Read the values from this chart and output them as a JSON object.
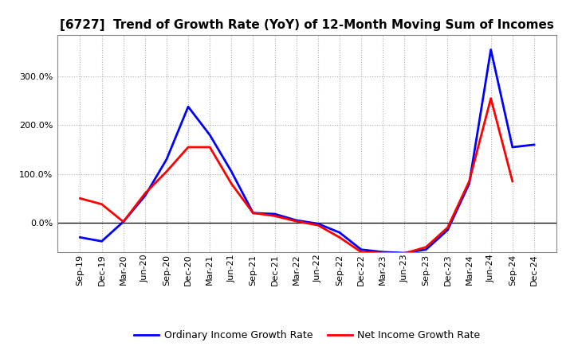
{
  "title": "[6727]  Trend of Growth Rate (YoY) of 12-Month Moving Sum of Incomes",
  "x_labels": [
    "Sep-19",
    "Dec-19",
    "Mar-20",
    "Jun-20",
    "Sep-20",
    "Dec-20",
    "Mar-21",
    "Jun-21",
    "Sep-21",
    "Dec-21",
    "Mar-22",
    "Jun-22",
    "Sep-22",
    "Dec-22",
    "Mar-23",
    "Jun-23",
    "Sep-23",
    "Dec-23",
    "Mar-24",
    "Jun-24",
    "Sep-24",
    "Dec-24"
  ],
  "ordinary_income": [
    -0.3,
    -0.38,
    0.02,
    0.55,
    1.3,
    2.38,
    1.8,
    1.05,
    0.2,
    0.18,
    0.05,
    -0.02,
    -0.2,
    -0.55,
    -0.6,
    -0.62,
    -0.55,
    -0.15,
    0.8,
    3.55,
    1.55,
    1.6
  ],
  "net_income": [
    0.5,
    0.38,
    0.02,
    0.6,
    1.05,
    1.55,
    1.55,
    0.8,
    0.2,
    0.14,
    0.03,
    -0.05,
    -0.3,
    -0.6,
    -0.62,
    -0.63,
    -0.5,
    -0.1,
    0.85,
    2.55,
    0.85,
    null
  ],
  "ordinary_color": "#0000ff",
  "net_color": "#ff0000",
  "background_color": "#ffffff",
  "grid_color": "#b0b0b0",
  "ylim": [
    -0.6,
    3.85
  ],
  "yticks": [
    0.0,
    1.0,
    2.0,
    3.0
  ],
  "ytick_labels": [
    "0.0%",
    "100.0%",
    "200.0%",
    "300.0%"
  ],
  "legend_ordinary": "Ordinary Income Growth Rate",
  "legend_net": "Net Income Growth Rate",
  "title_fontsize": 11,
  "tick_fontsize": 8,
  "legend_fontsize": 9,
  "line_width": 2.0,
  "spine_color": "#888888"
}
